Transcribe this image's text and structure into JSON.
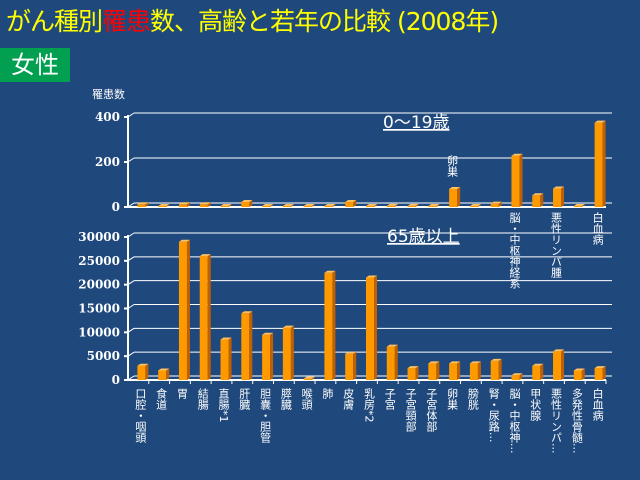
{
  "title": {
    "part1": "がん種別",
    "part2": "罹患",
    "part3": "数、高齢と若年の比較 (2008年)"
  },
  "sex_label": "女性",
  "colors": {
    "bar": "#ff9900",
    "bar_side": "#c06000",
    "bar_top": "#ffc060",
    "grid": "#ffffff",
    "title": "#ffff00",
    "highlight": "#ff0000",
    "sex_bg": "#00a050"
  },
  "chart_data": [
    {
      "type": "bar",
      "title": "0～19歳",
      "ylabel": "罹患数",
      "ylim": [
        0,
        400
      ],
      "yticks": [
        0,
        200,
        400
      ],
      "grid": true,
      "categories": [
        "口腔・咽頭",
        "食道",
        "胃",
        "結腸",
        "直腸*1",
        "肝臓",
        "胆嚢・胆管",
        "膵臓",
        "喉頭",
        "肺",
        "皮膚",
        "乳房*2",
        "子宮",
        "子宮頸部",
        "子宮体部",
        "卵巣",
        "膀胱",
        "腎・尿路",
        "脳・中枢神経系",
        "甲状腺",
        "悪性リンパ腫",
        "多発性骨髄腫",
        "白血病"
      ],
      "values": [
        12,
        0,
        12,
        12,
        0,
        22,
        0,
        0,
        0,
        0,
        22,
        0,
        5,
        5,
        0,
        80,
        2,
        15,
        228,
        52,
        82,
        0,
        375
      ],
      "annotations": [
        {
          "category_index": 15,
          "text": "卵巣"
        },
        {
          "category_index": 18,
          "text": "脳・中枢神経系"
        },
        {
          "category_index": 20,
          "text": "悪性リンパ腫"
        },
        {
          "category_index": 22,
          "text": "白血病"
        }
      ]
    },
    {
      "type": "bar",
      "title": "65歳以上",
      "ylim": [
        0,
        30000
      ],
      "yticks": [
        0,
        5000,
        10000,
        15000,
        20000,
        25000,
        30000
      ],
      "grid": true,
      "categories": [
        "口腔・咽頭",
        "食道",
        "胃",
        "結腸",
        "直腸*1",
        "肝臓",
        "胆嚢・胆管",
        "膵臓",
        "喉頭",
        "肺",
        "皮膚",
        "乳房*2",
        "子宮",
        "子宮頸部",
        "子宮体部",
        "卵巣",
        "膀胱",
        "腎・尿路",
        "脳・中枢神経系",
        "甲状腺",
        "悪性リンパ腫",
        "多発性骨髄腫",
        "白血病"
      ],
      "category_labels_shown": [
        "口腔・咽頭",
        "食道",
        "胃",
        "結腸",
        "直腸*1",
        "肝臓",
        "胆嚢・胆管",
        "膵臓",
        "喉頭",
        "肺",
        "皮膚",
        "乳房*2",
        "子宮",
        "子宮頸部",
        "子宮体部",
        "卵巣",
        "膀胱",
        "腎・尿路...",
        "脳・中枢神...",
        "甲状腺",
        "悪性リンパ...",
        "多発性骨髄...",
        "白血病"
      ],
      "values": [
        3000,
        2000,
        29000,
        26000,
        8500,
        14000,
        9500,
        11000,
        300,
        22500,
        5500,
        21500,
        7000,
        2500,
        3500,
        3500,
        3500,
        4000,
        1000,
        3000,
        6000,
        2000,
        2500
      ]
    }
  ]
}
